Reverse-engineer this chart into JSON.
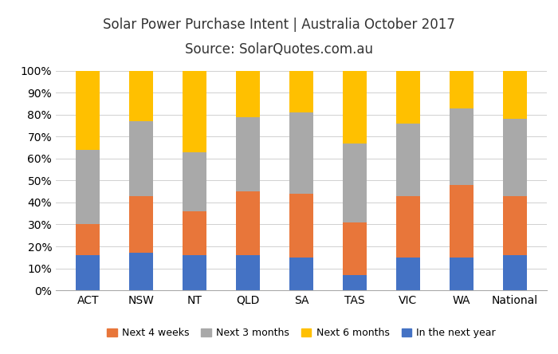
{
  "categories": [
    "ACT",
    "NSW",
    "NT",
    "QLD",
    "SA",
    "TAS",
    "VIC",
    "WA",
    "National"
  ],
  "series": {
    "In the next year": [
      16,
      17,
      16,
      16,
      15,
      7,
      15,
      15,
      16
    ],
    "Next 4 weeks": [
      14,
      26,
      20,
      29,
      29,
      24,
      28,
      33,
      27
    ],
    "Next 3 months": [
      34,
      34,
      27,
      34,
      37,
      36,
      33,
      35,
      35
    ],
    "Next 6 months": [
      36,
      23,
      37,
      21,
      19,
      33,
      24,
      17,
      22
    ]
  },
  "colors": {
    "Next 4 weeks": "#E8763A",
    "Next 3 months": "#A9A9A9",
    "Next 6 months": "#FFC000",
    "In the next year": "#4472C4"
  },
  "stack_order": [
    "In the next year",
    "Next 4 weeks",
    "Next 3 months",
    "Next 6 months"
  ],
  "title_line1": "Solar Power Purchase Intent | Australia October 2017",
  "title_line2": "Source: SolarQuotes.com.au",
  "ylim": [
    0,
    100
  ],
  "yticks": [
    0,
    10,
    20,
    30,
    40,
    50,
    60,
    70,
    80,
    90,
    100
  ],
  "ytick_labels": [
    "0%",
    "10%",
    "20%",
    "30%",
    "40%",
    "50%",
    "60%",
    "70%",
    "80%",
    "90%",
    "100%"
  ],
  "background_color": "#FFFFFF",
  "bar_width": 0.45,
  "legend_order": [
    "Next 4 weeks",
    "Next 3 months",
    "Next 6 months",
    "In the next year"
  ]
}
